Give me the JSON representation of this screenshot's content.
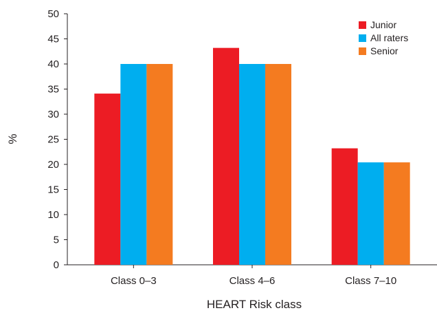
{
  "chart_data": {
    "type": "bar",
    "title": "",
    "xlabel": "HEART Risk class",
    "ylabel": "%",
    "categories": [
      "Class 0–3",
      "Class 4–6",
      "Class 7–10"
    ],
    "series": [
      {
        "name": "Junior",
        "color": "#ec1c24",
        "values": [
          34.1,
          43.2,
          23.2
        ]
      },
      {
        "name": "All raters",
        "color": "#00aeef",
        "values": [
          40.0,
          40.0,
          20.4
        ]
      },
      {
        "name": "Senior",
        "color": "#f47b20",
        "values": [
          40.0,
          40.0,
          20.4
        ]
      }
    ],
    "ylim": [
      0,
      50
    ],
    "yticks": [
      0,
      5,
      10,
      15,
      20,
      25,
      30,
      35,
      40,
      45,
      50
    ],
    "grid": false,
    "legend_position": "top-right"
  }
}
